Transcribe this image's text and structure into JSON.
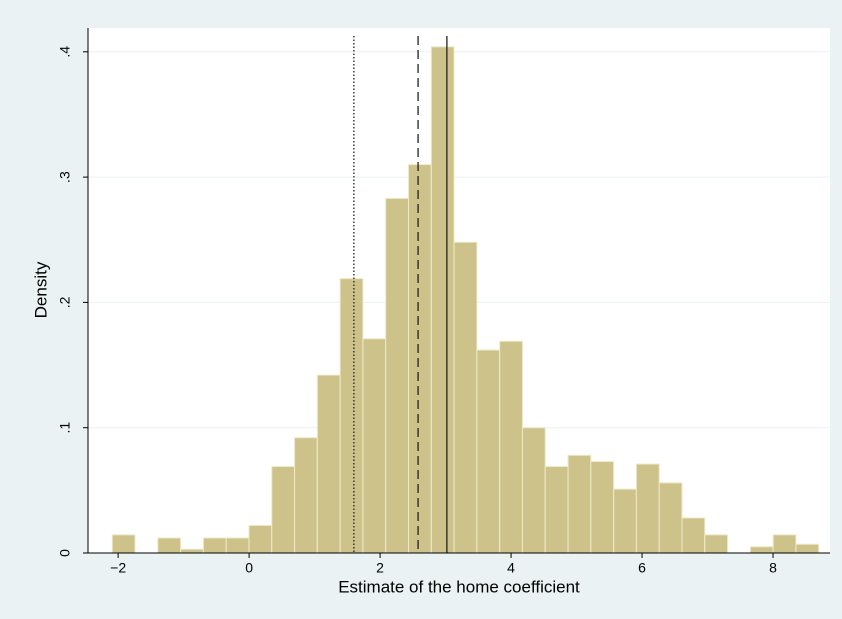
{
  "chart_data": {
    "type": "histogram",
    "xlabel": "Estimate of the home coefficient",
    "ylabel": "Density",
    "bins": [
      -2.09,
      -1.742,
      -1.394,
      -1.046,
      -0.698,
      -0.35,
      -0.002,
      0.346,
      0.694,
      1.042,
      1.39,
      1.738,
      2.086,
      2.434,
      2.782,
      3.13,
      3.478,
      3.826,
      4.174,
      4.522,
      4.87,
      5.218,
      5.566,
      5.914,
      6.262,
      6.61,
      6.958,
      7.306,
      7.654,
      8.002,
      8.35,
      8.698
    ],
    "values": [
      0.0145,
      0,
      0.012,
      0.003,
      0.012,
      0.012,
      0.022,
      0.069,
      0.092,
      0.142,
      0.219,
      0.171,
      0.283,
      0.31,
      0.404,
      0.248,
      0.162,
      0.169,
      0.1,
      0.069,
      0.078,
      0.073,
      0.051,
      0.071,
      0.056,
      0.028,
      0.0145,
      0,
      0.005,
      0.0145,
      0.007
    ],
    "color": "#cdc38a",
    "reference_lines": [
      {
        "x": 1.6,
        "style": "dotted"
      },
      {
        "x": 2.58,
        "style": "dashed"
      },
      {
        "x": 3.02,
        "style": "solid"
      }
    ],
    "xlim": [
      -2.46,
      8.87
    ],
    "ylim": [
      0,
      0.419
    ],
    "xticks": [
      {
        "value": -2,
        "label": "−2"
      },
      0,
      2,
      4,
      6,
      8
    ],
    "yticks": [
      0,
      {
        "value": 0.1,
        "label": ".1"
      },
      {
        "value": 0.2,
        "label": ".2"
      },
      {
        "value": 0.3,
        "label": ".3"
      },
      {
        "value": 0.4,
        "label": ".4"
      }
    ],
    "grid": true
  }
}
